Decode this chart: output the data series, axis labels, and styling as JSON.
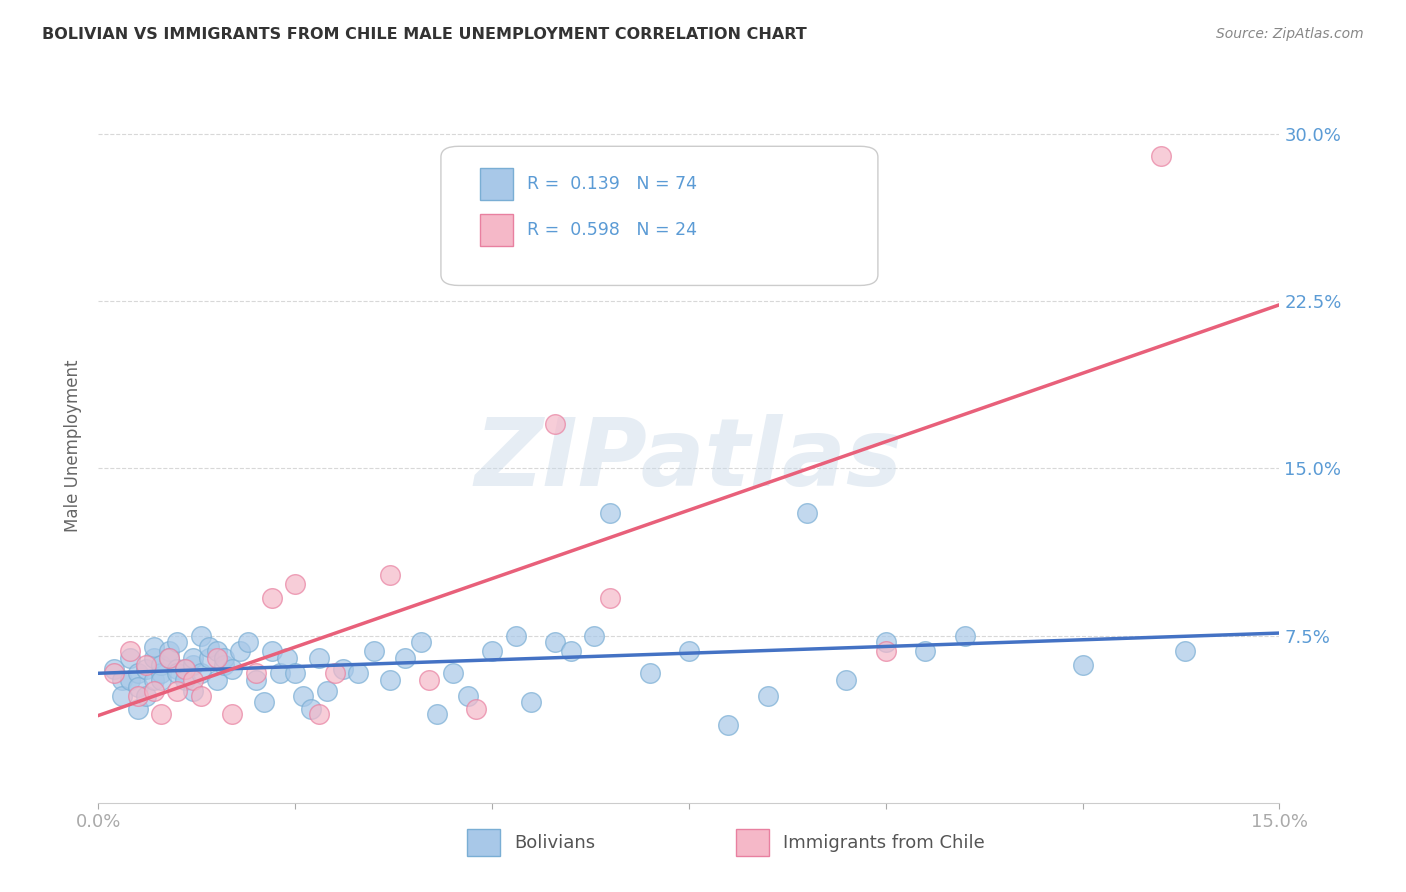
{
  "title": "BOLIVIAN VS IMMIGRANTS FROM CHILE MALE UNEMPLOYMENT CORRELATION CHART",
  "source": "Source: ZipAtlas.com",
  "ylabel_label": "Male Unemployment",
  "xlim": [
    0.0,
    0.15
  ],
  "ylim": [
    0.0,
    0.32
  ],
  "yticks": [
    0.075,
    0.15,
    0.225,
    0.3
  ],
  "ytick_labels": [
    "7.5%",
    "15.0%",
    "22.5%",
    "30.0%"
  ],
  "xtick_vals": [
    0.0,
    0.025,
    0.05,
    0.075,
    0.1,
    0.125,
    0.15
  ],
  "xtick_labels": [
    "0.0%",
    "",
    "",
    "",
    "",
    "",
    "15.0%"
  ],
  "blue_color": "#a8c8e8",
  "blue_edge": "#7aaed4",
  "pink_color": "#f5b8c8",
  "pink_edge": "#e880a0",
  "blue_line_color": "#4472c4",
  "pink_line_color": "#e8607a",
  "blue_scatter": [
    [
      0.002,
      0.06
    ],
    [
      0.003,
      0.055
    ],
    [
      0.003,
      0.048
    ],
    [
      0.004,
      0.065
    ],
    [
      0.004,
      0.055
    ],
    [
      0.005,
      0.042
    ],
    [
      0.005,
      0.058
    ],
    [
      0.005,
      0.052
    ],
    [
      0.006,
      0.06
    ],
    [
      0.006,
      0.048
    ],
    [
      0.007,
      0.065
    ],
    [
      0.007,
      0.055
    ],
    [
      0.007,
      0.07
    ],
    [
      0.008,
      0.058
    ],
    [
      0.008,
      0.062
    ],
    [
      0.008,
      0.055
    ],
    [
      0.009,
      0.068
    ],
    [
      0.009,
      0.065
    ],
    [
      0.01,
      0.06
    ],
    [
      0.01,
      0.058
    ],
    [
      0.01,
      0.072
    ],
    [
      0.011,
      0.06
    ],
    [
      0.011,
      0.055
    ],
    [
      0.012,
      0.062
    ],
    [
      0.012,
      0.05
    ],
    [
      0.012,
      0.065
    ],
    [
      0.013,
      0.058
    ],
    [
      0.013,
      0.075
    ],
    [
      0.014,
      0.065
    ],
    [
      0.014,
      0.07
    ],
    [
      0.015,
      0.068
    ],
    [
      0.015,
      0.055
    ],
    [
      0.016,
      0.062
    ],
    [
      0.016,
      0.065
    ],
    [
      0.017,
      0.06
    ],
    [
      0.018,
      0.068
    ],
    [
      0.019,
      0.072
    ],
    [
      0.02,
      0.055
    ],
    [
      0.021,
      0.045
    ],
    [
      0.022,
      0.068
    ],
    [
      0.023,
      0.058
    ],
    [
      0.024,
      0.065
    ],
    [
      0.025,
      0.058
    ],
    [
      0.026,
      0.048
    ],
    [
      0.027,
      0.042
    ],
    [
      0.028,
      0.065
    ],
    [
      0.029,
      0.05
    ],
    [
      0.031,
      0.06
    ],
    [
      0.033,
      0.058
    ],
    [
      0.035,
      0.068
    ],
    [
      0.037,
      0.055
    ],
    [
      0.039,
      0.065
    ],
    [
      0.041,
      0.072
    ],
    [
      0.043,
      0.04
    ],
    [
      0.045,
      0.058
    ],
    [
      0.047,
      0.048
    ],
    [
      0.05,
      0.068
    ],
    [
      0.053,
      0.075
    ],
    [
      0.055,
      0.045
    ],
    [
      0.058,
      0.072
    ],
    [
      0.06,
      0.068
    ],
    [
      0.063,
      0.075
    ],
    [
      0.065,
      0.13
    ],
    [
      0.07,
      0.058
    ],
    [
      0.075,
      0.068
    ],
    [
      0.08,
      0.035
    ],
    [
      0.085,
      0.048
    ],
    [
      0.09,
      0.13
    ],
    [
      0.095,
      0.055
    ],
    [
      0.1,
      0.072
    ],
    [
      0.105,
      0.068
    ],
    [
      0.11,
      0.075
    ],
    [
      0.125,
      0.062
    ],
    [
      0.138,
      0.068
    ]
  ],
  "pink_scatter": [
    [
      0.002,
      0.058
    ],
    [
      0.004,
      0.068
    ],
    [
      0.005,
      0.048
    ],
    [
      0.006,
      0.062
    ],
    [
      0.007,
      0.05
    ],
    [
      0.008,
      0.04
    ],
    [
      0.009,
      0.065
    ],
    [
      0.01,
      0.05
    ],
    [
      0.011,
      0.06
    ],
    [
      0.012,
      0.055
    ],
    [
      0.013,
      0.048
    ],
    [
      0.015,
      0.065
    ],
    [
      0.017,
      0.04
    ],
    [
      0.02,
      0.058
    ],
    [
      0.022,
      0.092
    ],
    [
      0.025,
      0.098
    ],
    [
      0.028,
      0.04
    ],
    [
      0.03,
      0.058
    ],
    [
      0.037,
      0.102
    ],
    [
      0.042,
      0.055
    ],
    [
      0.048,
      0.042
    ],
    [
      0.065,
      0.092
    ],
    [
      0.1,
      0.068
    ],
    [
      0.058,
      0.17
    ],
    [
      0.135,
      0.29
    ]
  ],
  "watermark_text": "ZIPatlas",
  "background_color": "#ffffff",
  "grid_color": "#d8d8d8"
}
